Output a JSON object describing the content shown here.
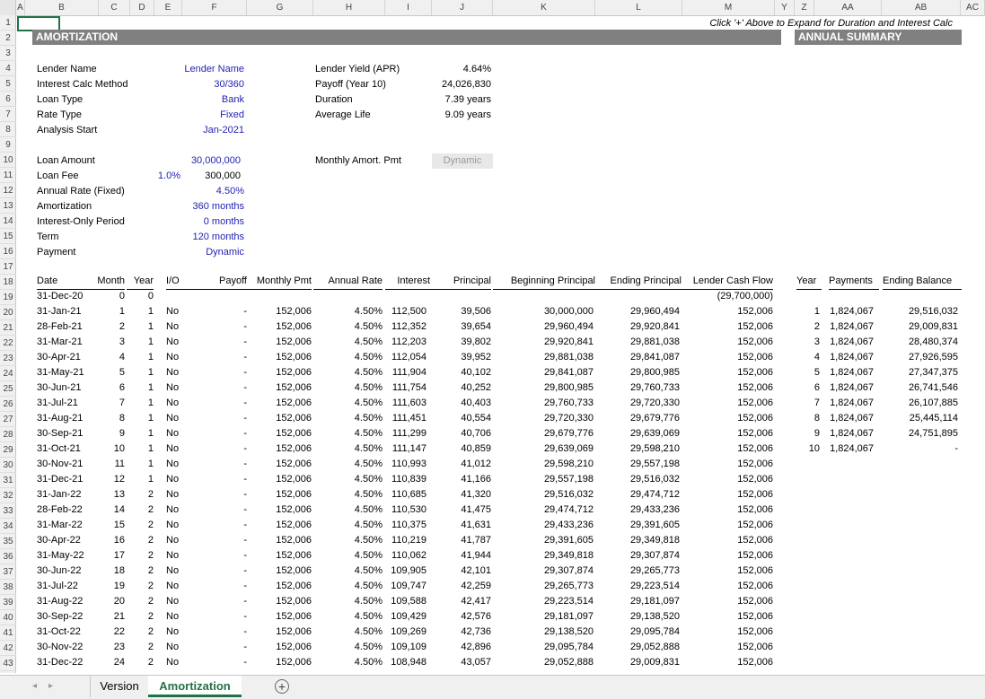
{
  "columns": [
    "A",
    "B",
    "C",
    "D",
    "E",
    "F",
    "G",
    "H",
    "I",
    "J",
    "K",
    "L",
    "M",
    "Y",
    "Z",
    "AA",
    "AB",
    "AC"
  ],
  "note": "Click '+' Above to Expand for Duration and Interest Calc",
  "amort_title": "AMORTIZATION",
  "summary_title": "ANNUAL SUMMARY",
  "inputs": [
    {
      "label": "Lender Name",
      "value": "Lender Name"
    },
    {
      "label": "Interest Calc Method",
      "value": "30/360"
    },
    {
      "label": "Loan Type",
      "value": "Bank"
    },
    {
      "label": "Rate Type",
      "value": "Fixed"
    },
    {
      "label": "Analysis Start",
      "value": "Jan-2021"
    }
  ],
  "loan": {
    "amount_label": "Loan Amount",
    "amount": "30,000,000",
    "fee_label": "Loan Fee",
    "fee_pct": "1.0%",
    "fee": "300,000",
    "rate_label": "Annual Rate (Fixed)",
    "rate": "4.50%",
    "amort_label": "Amortization",
    "amort": "360 months",
    "io_label": "Interest-Only Period",
    "io": "0 months",
    "term_label": "Term",
    "term": "120 months",
    "payment_label": "Payment",
    "payment": "Dynamic"
  },
  "metrics": [
    {
      "label": "Lender Yield (APR)",
      "value": "4.64%"
    },
    {
      "label": "Payoff (Year 10)",
      "value": "24,026,830"
    },
    {
      "label": "Duration",
      "value": "7.39 years"
    },
    {
      "label": "Average Life",
      "value": "9.09 years"
    }
  ],
  "monthly_pmt_label": "Monthly Amort. Pmt",
  "monthly_pmt_value": "Dynamic",
  "table_headers": [
    "Date",
    "Month",
    "Year",
    "I/O",
    "Payoff",
    "Monthly Pmt",
    "Annual Rate",
    "Interest",
    "Principal",
    "Beginning Principal",
    "Ending Principal",
    "Lender Cash Flow"
  ],
  "initial_row": {
    "date": "31-Dec-20",
    "month": "0",
    "year": "0",
    "cashflow": "(29,700,000)"
  },
  "rows": [
    [
      "31-Jan-21",
      "1",
      "1",
      "No",
      "-",
      "152,006",
      "4.50%",
      "112,500",
      "39,506",
      "30,000,000",
      "29,960,494",
      "152,006"
    ],
    [
      "28-Feb-21",
      "2",
      "1",
      "No",
      "-",
      "152,006",
      "4.50%",
      "112,352",
      "39,654",
      "29,960,494",
      "29,920,841",
      "152,006"
    ],
    [
      "31-Mar-21",
      "3",
      "1",
      "No",
      "-",
      "152,006",
      "4.50%",
      "112,203",
      "39,802",
      "29,920,841",
      "29,881,038",
      "152,006"
    ],
    [
      "30-Apr-21",
      "4",
      "1",
      "No",
      "-",
      "152,006",
      "4.50%",
      "112,054",
      "39,952",
      "29,881,038",
      "29,841,087",
      "152,006"
    ],
    [
      "31-May-21",
      "5",
      "1",
      "No",
      "-",
      "152,006",
      "4.50%",
      "111,904",
      "40,102",
      "29,841,087",
      "29,800,985",
      "152,006"
    ],
    [
      "30-Jun-21",
      "6",
      "1",
      "No",
      "-",
      "152,006",
      "4.50%",
      "111,754",
      "40,252",
      "29,800,985",
      "29,760,733",
      "152,006"
    ],
    [
      "31-Jul-21",
      "7",
      "1",
      "No",
      "-",
      "152,006",
      "4.50%",
      "111,603",
      "40,403",
      "29,760,733",
      "29,720,330",
      "152,006"
    ],
    [
      "31-Aug-21",
      "8",
      "1",
      "No",
      "-",
      "152,006",
      "4.50%",
      "111,451",
      "40,554",
      "29,720,330",
      "29,679,776",
      "152,006"
    ],
    [
      "30-Sep-21",
      "9",
      "1",
      "No",
      "-",
      "152,006",
      "4.50%",
      "111,299",
      "40,706",
      "29,679,776",
      "29,639,069",
      "152,006"
    ],
    [
      "31-Oct-21",
      "10",
      "1",
      "No",
      "-",
      "152,006",
      "4.50%",
      "111,147",
      "40,859",
      "29,639,069",
      "29,598,210",
      "152,006"
    ],
    [
      "30-Nov-21",
      "11",
      "1",
      "No",
      "-",
      "152,006",
      "4.50%",
      "110,993",
      "41,012",
      "29,598,210",
      "29,557,198",
      "152,006"
    ],
    [
      "31-Dec-21",
      "12",
      "1",
      "No",
      "-",
      "152,006",
      "4.50%",
      "110,839",
      "41,166",
      "29,557,198",
      "29,516,032",
      "152,006"
    ],
    [
      "31-Jan-22",
      "13",
      "2",
      "No",
      "-",
      "152,006",
      "4.50%",
      "110,685",
      "41,320",
      "29,516,032",
      "29,474,712",
      "152,006"
    ],
    [
      "28-Feb-22",
      "14",
      "2",
      "No",
      "-",
      "152,006",
      "4.50%",
      "110,530",
      "41,475",
      "29,474,712",
      "29,433,236",
      "152,006"
    ],
    [
      "31-Mar-22",
      "15",
      "2",
      "No",
      "-",
      "152,006",
      "4.50%",
      "110,375",
      "41,631",
      "29,433,236",
      "29,391,605",
      "152,006"
    ],
    [
      "30-Apr-22",
      "16",
      "2",
      "No",
      "-",
      "152,006",
      "4.50%",
      "110,219",
      "41,787",
      "29,391,605",
      "29,349,818",
      "152,006"
    ],
    [
      "31-May-22",
      "17",
      "2",
      "No",
      "-",
      "152,006",
      "4.50%",
      "110,062",
      "41,944",
      "29,349,818",
      "29,307,874",
      "152,006"
    ],
    [
      "30-Jun-22",
      "18",
      "2",
      "No",
      "-",
      "152,006",
      "4.50%",
      "109,905",
      "42,101",
      "29,307,874",
      "29,265,773",
      "152,006"
    ],
    [
      "31-Jul-22",
      "19",
      "2",
      "No",
      "-",
      "152,006",
      "4.50%",
      "109,747",
      "42,259",
      "29,265,773",
      "29,223,514",
      "152,006"
    ],
    [
      "31-Aug-22",
      "20",
      "2",
      "No",
      "-",
      "152,006",
      "4.50%",
      "109,588",
      "42,417",
      "29,223,514",
      "29,181,097",
      "152,006"
    ],
    [
      "30-Sep-22",
      "21",
      "2",
      "No",
      "-",
      "152,006",
      "4.50%",
      "109,429",
      "42,576",
      "29,181,097",
      "29,138,520",
      "152,006"
    ],
    [
      "31-Oct-22",
      "22",
      "2",
      "No",
      "-",
      "152,006",
      "4.50%",
      "109,269",
      "42,736",
      "29,138,520",
      "29,095,784",
      "152,006"
    ],
    [
      "30-Nov-22",
      "23",
      "2",
      "No",
      "-",
      "152,006",
      "4.50%",
      "109,109",
      "42,896",
      "29,095,784",
      "29,052,888",
      "152,006"
    ],
    [
      "31-Dec-22",
      "24",
      "2",
      "No",
      "-",
      "152,006",
      "4.50%",
      "108,948",
      "43,057",
      "29,052,888",
      "29,009,831",
      "152,006"
    ]
  ],
  "summary_headers": [
    "Year",
    "Payments",
    "Ending Balance"
  ],
  "summary_rows": [
    [
      "1",
      "1,824,067",
      "29,516,032"
    ],
    [
      "2",
      "1,824,067",
      "29,009,831"
    ],
    [
      "3",
      "1,824,067",
      "28,480,374"
    ],
    [
      "4",
      "1,824,067",
      "27,926,595"
    ],
    [
      "5",
      "1,824,067",
      "27,347,375"
    ],
    [
      "6",
      "1,824,067",
      "26,741,546"
    ],
    [
      "7",
      "1,824,067",
      "26,107,885"
    ],
    [
      "8",
      "1,824,067",
      "25,445,114"
    ],
    [
      "9",
      "1,824,067",
      "24,751,895"
    ],
    [
      "10",
      "1,824,067",
      "-"
    ]
  ],
  "row_numbers": [
    "1",
    "2",
    "3",
    "4",
    "5",
    "6",
    "7",
    "8",
    "9",
    "10",
    "11",
    "12",
    "13",
    "14",
    "15",
    "16",
    "17",
    "18",
    "19",
    "20",
    "21",
    "22",
    "23",
    "24",
    "25",
    "26",
    "27",
    "28",
    "29",
    "30",
    "31",
    "32",
    "33",
    "34",
    "35",
    "36",
    "37",
    "38",
    "39",
    "40",
    "41",
    "42",
    "43"
  ],
  "tabs": {
    "nav_left": "◂",
    "nav_right": "▸",
    "version": "Version",
    "amortization": "Amortization",
    "add": "+"
  }
}
